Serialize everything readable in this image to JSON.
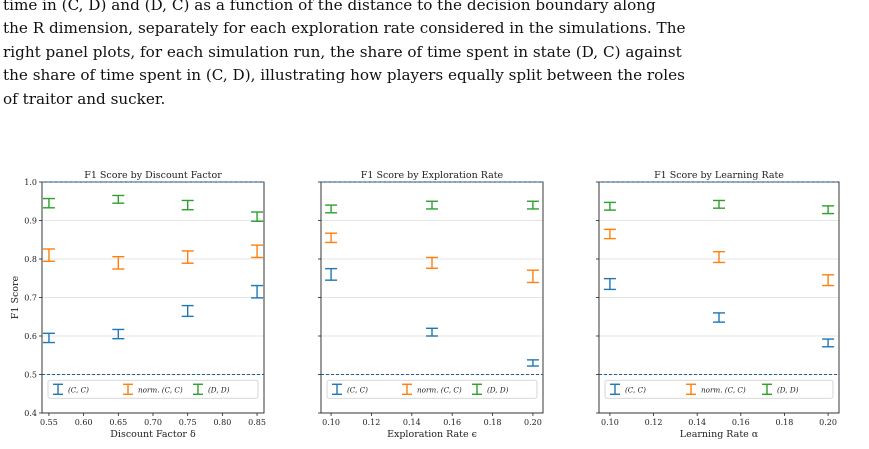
{
  "paragraph": {
    "lines": [
      "time in (C, D) and (D, C) as a function of the distance to the decision boundary along",
      "the R dimension, separately for each exploration rate considered in the simulations. The",
      "right panel plots, for each simulation run, the share of time spent in state (D, C) against",
      "the share of time spent in (C, D), illustrating how players equally split between the roles",
      "of traitor and sucker."
    ]
  },
  "colors": {
    "cc": "#1f77b4",
    "norm": "#ff7f0e",
    "dd": "#2ca02c",
    "threshold": "#1f5f99",
    "grid": "#dddddd"
  },
  "shared_y": {
    "label": "F1 Score",
    "ylim": [
      0.4,
      1.0
    ],
    "ticks": [
      "0.4",
      "0.5",
      "0.6",
      "0.7",
      "0.8",
      "0.9",
      "1.0"
    ]
  },
  "legend": {
    "labels": [
      "(C, C)",
      "norm. (C, C)",
      "(D, D)"
    ],
    "placement": "lower center"
  },
  "chart_data": [
    {
      "type": "errorbar",
      "title": "F1 Score by Discount Factor",
      "xlabel": "Discount Factor δ",
      "ylabel": "F1 Score",
      "xlim": [
        0.54,
        0.86
      ],
      "ylim": [
        0.4,
        1.0
      ],
      "xticks": [
        "0.55",
        "0.60",
        "0.65",
        "0.70",
        "0.75",
        "0.80",
        "0.85"
      ],
      "x": [
        0.55,
        0.65,
        0.75,
        0.85
      ],
      "reference_lines": [
        0.5,
        1.0
      ],
      "series": [
        {
          "name": "(C, C)",
          "color": "cc",
          "y": [
            0.595,
            0.605,
            0.665,
            0.715
          ],
          "err": [
            0.012,
            0.012,
            0.014,
            0.016
          ]
        },
        {
          "name": "norm. (C, C)",
          "color": "norm",
          "y": [
            0.81,
            0.79,
            0.805,
            0.82
          ],
          "err": [
            0.016,
            0.016,
            0.016,
            0.016
          ]
        },
        {
          "name": "(D, D)",
          "color": "dd",
          "y": [
            0.945,
            0.955,
            0.94,
            0.91
          ],
          "err": [
            0.012,
            0.01,
            0.012,
            0.012
          ]
        }
      ]
    },
    {
      "type": "errorbar",
      "title": "F1 Score by Exploration Rate",
      "xlabel": "Exploration Rate ϵ",
      "ylim": [
        0.4,
        1.0
      ],
      "xlim": [
        0.095,
        0.205
      ],
      "xticks": [
        "0.10",
        "0.12",
        "0.14",
        "0.16",
        "0.18",
        "0.20"
      ],
      "x": [
        0.1,
        0.15,
        0.2
      ],
      "reference_lines": [
        0.5,
        1.0
      ],
      "series": [
        {
          "name": "(C, C)",
          "color": "cc",
          "y": [
            0.76,
            0.61,
            0.53
          ],
          "err": [
            0.015,
            0.01,
            0.008
          ]
        },
        {
          "name": "norm. (C, C)",
          "color": "norm",
          "y": [
            0.855,
            0.79,
            0.755
          ],
          "err": [
            0.012,
            0.014,
            0.016
          ]
        },
        {
          "name": "(D, D)",
          "color": "dd",
          "y": [
            0.93,
            0.94,
            0.94
          ],
          "err": [
            0.01,
            0.01,
            0.01
          ]
        }
      ]
    },
    {
      "type": "errorbar",
      "title": "F1 Score by Learning Rate",
      "xlabel": "Learning Rate α",
      "ylim": [
        0.4,
        1.0
      ],
      "xlim": [
        0.095,
        0.205
      ],
      "xticks": [
        "0.10",
        "0.12",
        "0.14",
        "0.16",
        "0.18",
        "0.20"
      ],
      "x": [
        0.1,
        0.15,
        0.2
      ],
      "reference_lines": [
        0.5,
        1.0
      ],
      "series": [
        {
          "name": "(C, C)",
          "color": "cc",
          "y": [
            0.735,
            0.648,
            0.582
          ],
          "err": [
            0.014,
            0.012,
            0.01
          ]
        },
        {
          "name": "norm. (C, C)",
          "color": "norm",
          "y": [
            0.865,
            0.805,
            0.745
          ],
          "err": [
            0.012,
            0.014,
            0.014
          ]
        },
        {
          "name": "(D, D)",
          "color": "dd",
          "y": [
            0.937,
            0.942,
            0.928
          ],
          "err": [
            0.01,
            0.01,
            0.01
          ]
        }
      ]
    }
  ]
}
